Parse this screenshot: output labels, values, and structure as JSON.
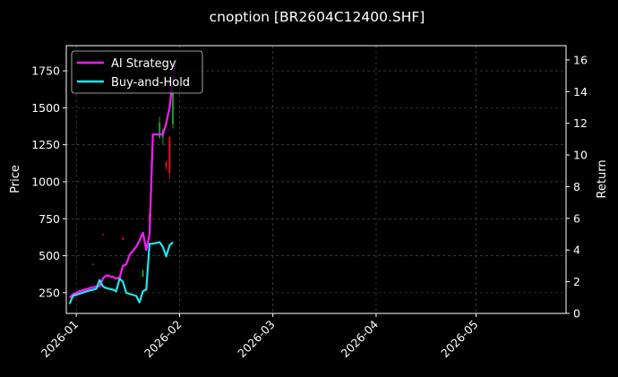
{
  "chart_data": {
    "type": "line",
    "title": "cnoption [BR2604C12400.SHF]",
    "ylabel_left": "Price",
    "ylabel_right": "Return",
    "grid": true,
    "legend_placement": "top-left",
    "colors": {
      "background": "#000000",
      "strategy": "#ff1aff",
      "buyhold": "#22e5ee",
      "candle_up": "#1a9a3a",
      "candle_down": "#e0111b",
      "grid": "#555555",
      "frame": "#ffffff"
    },
    "x_axis": {
      "range": [
        "2025-12-29",
        "2026-05-28"
      ],
      "ticks": [
        {
          "date": "2026-01-01",
          "label": "2026-01"
        },
        {
          "date": "2026-02-01",
          "label": "2026-02"
        },
        {
          "date": "2026-03-01",
          "label": "2026-03"
        },
        {
          "date": "2026-04-01",
          "label": "2026-04"
        },
        {
          "date": "2026-05-01",
          "label": "2026-05"
        }
      ]
    },
    "y_left": {
      "range": [
        110,
        1920
      ],
      "ticks": [
        {
          "v": 250,
          "label": "250"
        },
        {
          "v": 500,
          "label": "500"
        },
        {
          "v": 750,
          "label": "750"
        },
        {
          "v": 1000,
          "label": "1000"
        },
        {
          "v": 1250,
          "label": "1250"
        },
        {
          "v": 1500,
          "label": "1500"
        },
        {
          "v": 1750,
          "label": "1750"
        }
      ]
    },
    "y_right": {
      "range": [
        0,
        16.9
      ],
      "ticks": [
        {
          "v": 0,
          "label": "0"
        },
        {
          "v": 2,
          "label": "2"
        },
        {
          "v": 4,
          "label": "4"
        },
        {
          "v": 6,
          "label": "6"
        },
        {
          "v": 8,
          "label": "8"
        },
        {
          "v": 10,
          "label": "10"
        },
        {
          "v": 12,
          "label": "12"
        },
        {
          "v": 14,
          "label": "14"
        },
        {
          "v": 16,
          "label": "16"
        }
      ]
    },
    "series": [
      {
        "name": "AI Strategy",
        "axis": "right",
        "color": "#ff1aff",
        "points": [
          [
            "2025-12-30",
            1.0
          ],
          [
            "2025-12-31",
            1.2
          ],
          [
            "2026-01-02",
            1.4
          ],
          [
            "2026-01-05",
            1.6
          ],
          [
            "2026-01-06",
            1.65
          ],
          [
            "2026-01-07",
            1.7
          ],
          [
            "2026-01-08",
            1.7
          ],
          [
            "2026-01-09",
            2.2
          ],
          [
            "2026-01-10",
            2.4
          ],
          [
            "2026-01-12",
            2.3
          ],
          [
            "2026-01-13",
            2.2
          ],
          [
            "2026-01-14",
            2.25
          ],
          [
            "2026-01-15",
            3.0
          ],
          [
            "2026-01-16",
            3.1
          ],
          [
            "2026-01-17",
            3.7
          ],
          [
            "2026-01-19",
            4.2
          ],
          [
            "2026-01-20",
            4.6
          ],
          [
            "2026-01-21",
            5.1
          ],
          [
            "2026-01-22",
            4.0
          ],
          [
            "2026-01-23",
            5.0
          ],
          [
            "2026-01-24",
            11.3
          ],
          [
            "2026-01-26",
            11.3
          ],
          [
            "2026-01-27",
            11.3
          ],
          [
            "2026-01-28",
            12.0
          ],
          [
            "2026-01-29",
            13.0
          ],
          [
            "2026-01-30",
            14.8
          ],
          [
            "2026-01-31",
            16.1
          ]
        ]
      },
      {
        "name": "Buy-and-Hold",
        "axis": "right",
        "color": "#22e5ee",
        "points": [
          [
            "2025-12-30",
            0.6
          ],
          [
            "2025-12-31",
            1.1
          ],
          [
            "2026-01-02",
            1.25
          ],
          [
            "2026-01-05",
            1.45
          ],
          [
            "2026-01-06",
            1.5
          ],
          [
            "2026-01-07",
            1.55
          ],
          [
            "2026-01-08",
            2.1
          ],
          [
            "2026-01-09",
            1.7
          ],
          [
            "2026-01-10",
            1.6
          ],
          [
            "2026-01-12",
            1.5
          ],
          [
            "2026-01-13",
            1.4
          ],
          [
            "2026-01-14",
            2.2
          ],
          [
            "2026-01-15",
            2.0
          ],
          [
            "2026-01-16",
            1.3
          ],
          [
            "2026-01-19",
            1.1
          ],
          [
            "2026-01-20",
            0.7
          ],
          [
            "2026-01-21",
            1.4
          ],
          [
            "2026-01-22",
            1.5
          ],
          [
            "2026-01-23",
            4.4
          ],
          [
            "2026-01-24",
            4.4
          ],
          [
            "2026-01-26",
            4.5
          ],
          [
            "2026-01-27",
            4.2
          ],
          [
            "2026-01-28",
            3.6
          ],
          [
            "2026-01-29",
            4.3
          ],
          [
            "2026-01-30",
            4.5
          ]
        ]
      }
    ],
    "candles": [
      {
        "date": "2026-01-06",
        "open": 440,
        "close": 445,
        "low": 440,
        "high": 445
      },
      {
        "date": "2026-01-09",
        "open": 645,
        "close": 640,
        "low": 638,
        "high": 647
      },
      {
        "date": "2026-01-15",
        "open": 620,
        "close": 610,
        "low": 605,
        "high": 625
      },
      {
        "date": "2026-01-21",
        "open": 360,
        "close": 400,
        "low": 355,
        "high": 405
      },
      {
        "date": "2026-01-23",
        "open": 780,
        "close": 730,
        "low": 725,
        "high": 785
      },
      {
        "date": "2026-01-26",
        "open": 1300,
        "close": 1400,
        "low": 1290,
        "high": 1440
      },
      {
        "date": "2026-01-27",
        "open": 1300,
        "close": 1350,
        "low": 1250,
        "high": 1360
      },
      {
        "date": "2026-01-28",
        "open": 1130,
        "close": 1100,
        "low": 1080,
        "high": 1140
      },
      {
        "date": "2026-01-29",
        "open": 1300,
        "close": 1060,
        "low": 1020,
        "high": 1310
      },
      {
        "date": "2026-01-30",
        "open": 1390,
        "close": 1600,
        "low": 1360,
        "high": 1640
      }
    ]
  }
}
